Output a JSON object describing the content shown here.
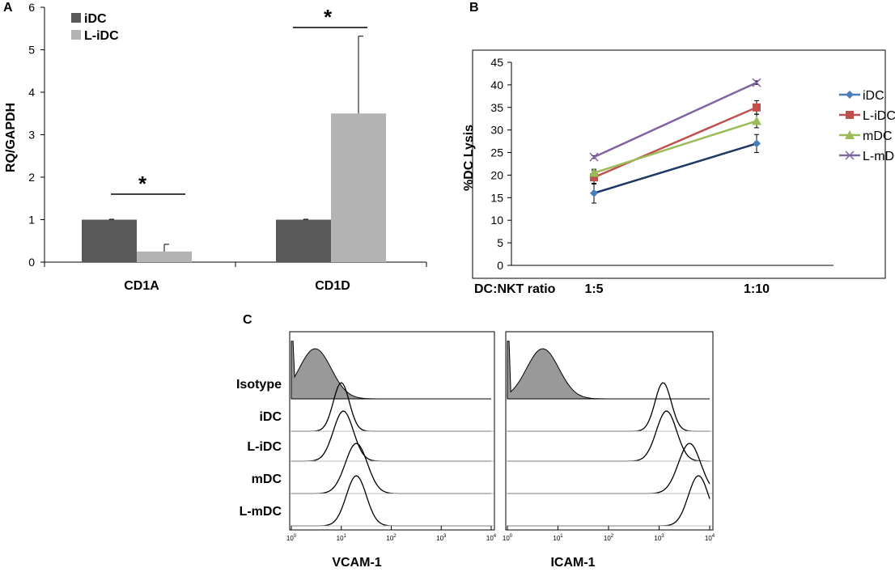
{
  "panels": {
    "a": "A",
    "b": "B",
    "c": "C"
  },
  "colors": {
    "idc_bar": "#595959",
    "lidc_bar": "#b3b3b3",
    "idc_line": "#4a7ebb",
    "lidc_line": "#c0504d",
    "mdc_line": "#9bbb59",
    "lmdc_line": "#8064a2",
    "idc_segment": "#1f3864",
    "isotype_fill": "#999999"
  },
  "chart_data": [
    {
      "id": "A",
      "type": "bar",
      "ylabel": "RQ/GAPDH",
      "ylim": [
        0,
        6
      ],
      "yticks": [
        "0",
        "1",
        "2",
        "3",
        "4",
        "5",
        "6"
      ],
      "categories": [
        "CD1A",
        "CD1D"
      ],
      "series": [
        {
          "name": "iDC",
          "values": [
            1.0,
            1.0
          ],
          "errors": [
            0.01,
            0.01
          ]
        },
        {
          "name": "L-iDC",
          "values": [
            0.25,
            3.5
          ],
          "errors": [
            0.17,
            1.82
          ]
        }
      ],
      "significance": [
        "*",
        "*"
      ]
    },
    {
      "id": "B",
      "type": "line",
      "ylabel": "%DC Lysis",
      "ylim": [
        0,
        45
      ],
      "yticks": [
        "0",
        "5",
        "10",
        "15",
        "20",
        "25",
        "30",
        "35",
        "40",
        "45"
      ],
      "xlabel": "DC:NKT ratio",
      "categories": [
        "1:5",
        "1:10"
      ],
      "series": [
        {
          "name": "iDC",
          "values": [
            16,
            27
          ],
          "errors": [
            2.2,
            2.0
          ],
          "marker": "diamond"
        },
        {
          "name": "L-iDC",
          "values": [
            19.5,
            35
          ],
          "errors": [
            1.5,
            1.5
          ],
          "marker": "square"
        },
        {
          "name": "mDC",
          "values": [
            20.5,
            32
          ],
          "errors": [
            0.8,
            1.5
          ],
          "marker": "triangle"
        },
        {
          "name": "L-mDC",
          "values": [
            24,
            40.5
          ],
          "errors": [
            0.3,
            0.4
          ],
          "marker": "x"
        }
      ]
    },
    {
      "id": "C",
      "type": "histogram-overlay",
      "rows": [
        "Isotype",
        "iDC",
        "L-iDC",
        "mDC",
        "L-mDC"
      ],
      "xscale": "log",
      "xlim": [
        1,
        10000
      ],
      "xtick_base": "10",
      "xtick_exps": [
        "0",
        "1",
        "2",
        "3",
        "4"
      ],
      "plots": [
        {
          "xlabel": "VCAM-1",
          "peaks": [
            3,
            10,
            11,
            20,
            20
          ]
        },
        {
          "xlabel": "ICAM-1",
          "peaks": [
            5,
            1200,
            1400,
            4000,
            6000
          ]
        }
      ]
    }
  ]
}
